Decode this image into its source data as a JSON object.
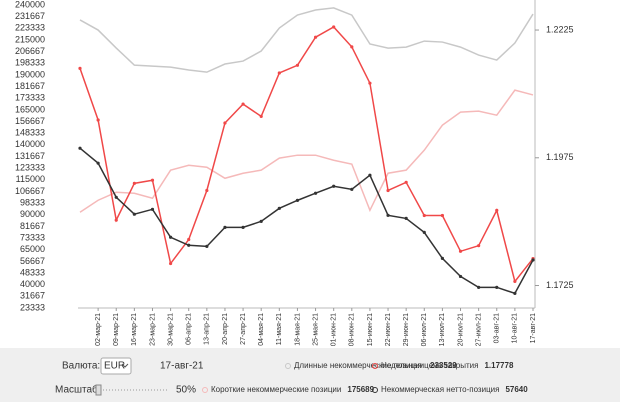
{
  "chart_data": {
    "type": "line",
    "categories": [
      null,
      "02-мар-21",
      "09-мар-21",
      "16-мар-21",
      "23-мар-21",
      "30-мар-21",
      "06-апр-21",
      "13-апр-21",
      "20-апр-21",
      "27-апр-21",
      "04-мая-21",
      "11-мая-21",
      "18-мая-21",
      "25-мая-21",
      "01-июн-21",
      "08-июн-21",
      "15-июн-21",
      "22-июн-21",
      "29-июн-21",
      "06-июл-21",
      "13-июл-21",
      "20-июл-21",
      "27-июл-21",
      "03-авг-21",
      "10-авг-21",
      "17-авг-21"
    ],
    "series": [
      {
        "name": "Длинные некоммерческие позиции",
        "color": "#c8c8c8",
        "axis": "y",
        "values": [
          229300,
          222100,
          209200,
          197000,
          196300,
          195600,
          193500,
          192000,
          197800,
          199900,
          207100,
          223500,
          232800,
          236400,
          237900,
          232800,
          212100,
          209200,
          209900,
          214200,
          213500,
          209900,
          204200,
          200600,
          212800,
          233529
        ]
      },
      {
        "name": "Короткие некоммерческие позиции",
        "color": "#f5b9b9",
        "axis": "y",
        "values": [
          91800,
          100400,
          106100,
          105400,
          101800,
          121900,
          125400,
          124000,
          116100,
          119700,
          121900,
          130500,
          132600,
          132600,
          129000,
          126200,
          93200,
          119700,
          121900,
          136200,
          154100,
          163400,
          164100,
          161200,
          179100,
          175689
        ]
      },
      {
        "name": "Недельная цена закрытия",
        "color": "#f04848",
        "axis": "y2",
        "values": [
          1.215,
          1.2049,
          1.1853,
          1.1925,
          1.1931,
          1.1768,
          1.1815,
          1.1911,
          1.2043,
          1.208,
          1.2056,
          1.2141,
          1.2156,
          1.2211,
          1.2231,
          1.2192,
          1.2121,
          1.1911,
          1.1927,
          1.1862,
          1.1862,
          1.1792,
          1.1803,
          1.1872,
          1.1733,
          1.17778
        ]
      },
      {
        "name": "Некоммерческая нетто-позиция",
        "color": "#333333",
        "axis": "y",
        "values": [
          137600,
          126900,
          102500,
          90400,
          93900,
          73900,
          68200,
          67400,
          81000,
          81000,
          85300,
          94600,
          100300,
          105400,
          110400,
          108200,
          118300,
          89600,
          87400,
          77400,
          58800,
          45900,
          38100,
          38100,
          33800,
          57640
        ]
      }
    ],
    "ylim": [
      23333,
      240000
    ],
    "yticks": [
      240000,
      231667,
      223333,
      215000,
      206667,
      198333,
      190000,
      181667,
      173333,
      165000,
      156667,
      148333,
      140000,
      131667,
      123333,
      115000,
      106667,
      98333,
      90000,
      81667,
      73333,
      65000,
      56667,
      48333,
      40000,
      31667,
      23333
    ],
    "y2lim": [
      1.1681,
      1.2274
    ],
    "y2ticks": [
      1.1725,
      1.1975,
      1.2225
    ],
    "grid": false
  },
  "controls": {
    "currency_label": "Валюта:",
    "currency": "EUR",
    "date": "17-авг-21",
    "scale_label": "Масштаб:",
    "scale": "50%"
  }
}
